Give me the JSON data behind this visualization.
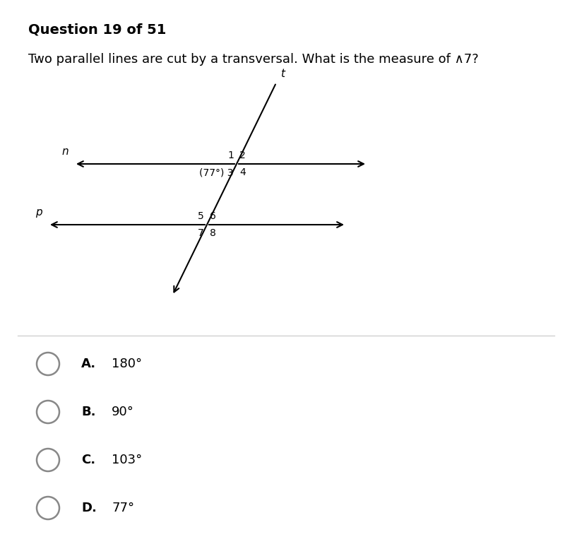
{
  "title": "Question 19 of 51",
  "question": "Two parallel lines are cut by a transversal. What is the measure of ∧7?",
  "line_n_label": "n",
  "line_p_label": "p",
  "transversal_label": "t",
  "angle_label": "(77°)",
  "intersection1_nums": [
    "1",
    "2",
    "3",
    "4"
  ],
  "intersection2_nums": [
    "5",
    "6",
    "7",
    "8"
  ],
  "choices": [
    {
      "letter": "A.",
      "text": "180°"
    },
    {
      "letter": "B.",
      "text": "90°"
    },
    {
      "letter": "C.",
      "text": "103°"
    },
    {
      "letter": "D.",
      "text": "77°"
    }
  ],
  "bg_color": "#ffffff",
  "line_color": "#000000",
  "text_color": "#000000",
  "circle_color": "#888888",
  "title_fontsize": 14,
  "question_fontsize": 13,
  "choice_fontsize": 13,
  "label_fontsize": 11,
  "num_fontsize": 10
}
